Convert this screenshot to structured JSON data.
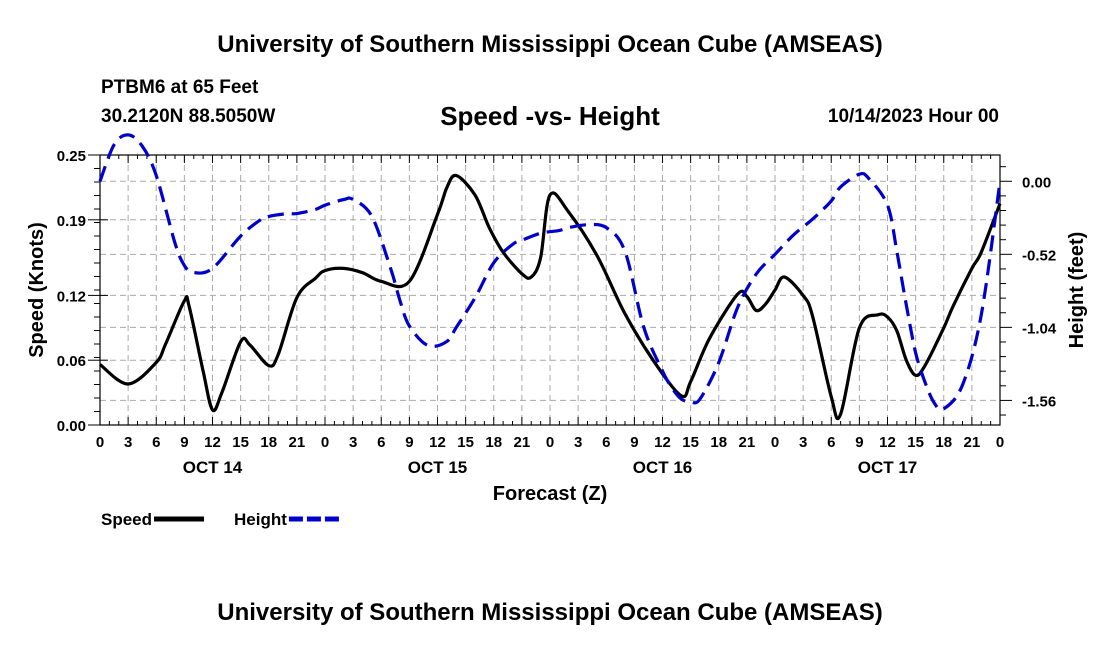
{
  "header": {
    "title": "University of Southern Mississippi Ocean Cube (AMSEAS)",
    "station": "PTBM6 at 65 Feet",
    "coords": "30.2120N  88.5050W",
    "datetime": "10/14/2023 Hour 00"
  },
  "footer": {
    "title": "University of Southern Mississippi Ocean Cube (AMSEAS)"
  },
  "chart_data": {
    "type": "line",
    "title": "Speed -vs- Height",
    "xlabel": "Forecast (Z)",
    "ylabel_left": "Speed (Knots)",
    "ylabel_right": "Height (feet)",
    "x_range_hours": [
      0,
      96
    ],
    "x_tick_step_hours": 3,
    "x_tick_labels": [
      "0",
      "3",
      "6",
      "9",
      "12",
      "15",
      "18",
      "21",
      "0",
      "3",
      "6",
      "9",
      "12",
      "15",
      "18",
      "21",
      "0",
      "3",
      "6",
      "9",
      "12",
      "15",
      "18",
      "21",
      "0",
      "3",
      "6",
      "9",
      "12",
      "15",
      "18",
      "21",
      "0"
    ],
    "day_labels": [
      {
        "label": "OCT 14",
        "hour": 12
      },
      {
        "label": "OCT 15",
        "hour": 36
      },
      {
        "label": "OCT 16",
        "hour": 60
      },
      {
        "label": "OCT 17",
        "hour": 84
      }
    ],
    "y_left": {
      "range": [
        0.0,
        0.25
      ],
      "ticks": [
        0.0,
        0.06,
        0.12,
        0.19,
        0.25
      ],
      "tick_labels": [
        "0.00",
        "0.06",
        "0.12",
        "0.19",
        "0.25"
      ]
    },
    "y_right": {
      "range": [
        -1.735,
        0.187
      ],
      "ticks": [
        0.0,
        -0.52,
        -1.04,
        -1.56
      ],
      "tick_labels": [
        "0.00",
        "-0.52",
        "-1.04",
        "-1.56"
      ]
    },
    "grid": true,
    "legend": [
      {
        "label": "Speed",
        "color": "#000000",
        "style": "solid"
      },
      {
        "label": "Height",
        "color": "#0000cc",
        "style": "dashed"
      }
    ],
    "series": [
      {
        "name": "Speed",
        "axis": "left",
        "color": "#000000",
        "dash": "solid",
        "x": [
          0,
          3,
          6,
          7,
          9,
          9.5,
          11,
          12,
          13,
          15,
          16,
          18,
          19,
          21,
          23,
          24,
          26,
          28,
          30,
          33,
          36,
          37,
          38,
          40,
          41.5,
          43,
          45,
          46,
          47,
          48,
          50,
          53,
          56,
          59,
          62,
          63,
          65,
          68,
          69,
          70,
          71,
          72,
          73,
          75,
          76,
          78,
          79,
          81,
          83,
          84,
          85,
          86,
          87,
          88,
          90,
          91,
          93,
          94,
          96
        ],
        "y": [
          0.056,
          0.038,
          0.058,
          0.075,
          0.115,
          0.11,
          0.05,
          0.014,
          0.03,
          0.077,
          0.074,
          0.055,
          0.065,
          0.118,
          0.136,
          0.143,
          0.145,
          0.141,
          0.133,
          0.133,
          0.195,
          0.22,
          0.231,
          0.213,
          0.183,
          0.16,
          0.14,
          0.137,
          0.155,
          0.213,
          0.197,
          0.157,
          0.103,
          0.06,
          0.027,
          0.04,
          0.08,
          0.121,
          0.119,
          0.106,
          0.112,
          0.125,
          0.137,
          0.12,
          0.101,
          0.026,
          0.01,
          0.09,
          0.102,
          0.1,
          0.087,
          0.06,
          0.046,
          0.055,
          0.09,
          0.11,
          0.145,
          0.16,
          0.205
        ]
      },
      {
        "name": "Height",
        "axis": "right",
        "color": "#0000cc",
        "dash": "dashed",
        "x": [
          0,
          1.5,
          3,
          4.5,
          6,
          8,
          9,
          10,
          12,
          15,
          17,
          18,
          20,
          21,
          23,
          24,
          26,
          27,
          29,
          31,
          32,
          33,
          35,
          37,
          38,
          40,
          42,
          44,
          45,
          47,
          49,
          50,
          52,
          54,
          56,
          58,
          60,
          61,
          62,
          63,
          64,
          66,
          68,
          70,
          72,
          74,
          76,
          78,
          79,
          81,
          82,
          84,
          85,
          86,
          87,
          88,
          89,
          90,
          92,
          94,
          96
        ],
        "y": [
          0.0,
          0.26,
          0.33,
          0.25,
          0.04,
          -0.44,
          -0.6,
          -0.65,
          -0.62,
          -0.39,
          -0.28,
          -0.25,
          -0.23,
          -0.23,
          -0.2,
          -0.17,
          -0.13,
          -0.13,
          -0.25,
          -0.62,
          -0.85,
          -1.03,
          -1.17,
          -1.14,
          -1.04,
          -0.83,
          -0.58,
          -0.45,
          -0.42,
          -0.37,
          -0.35,
          -0.33,
          -0.31,
          -0.33,
          -0.5,
          -1.04,
          -1.35,
          -1.47,
          -1.55,
          -1.57,
          -1.55,
          -1.29,
          -0.9,
          -0.66,
          -0.52,
          -0.38,
          -0.27,
          -0.14,
          -0.04,
          0.05,
          0.02,
          -0.17,
          -0.5,
          -0.88,
          -1.22,
          -1.43,
          -1.58,
          -1.62,
          -1.45,
          -0.95,
          0.0
        ]
      }
    ]
  }
}
